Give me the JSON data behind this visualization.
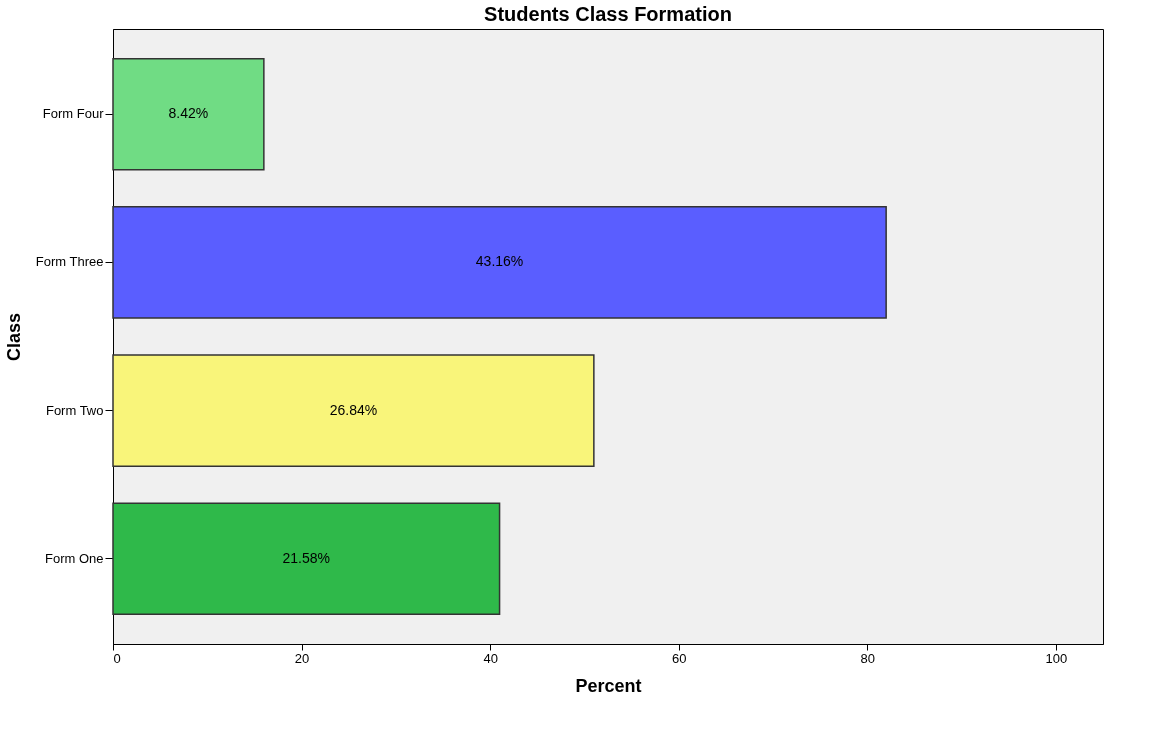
{
  "chart_data": {
    "type": "bar",
    "orientation": "horizontal",
    "title": "Students Class Formation",
    "xlabel": "Percent",
    "ylabel": "Class",
    "categories": [
      "Form Four",
      "Form Three",
      "Form Two",
      "Form One"
    ],
    "values": [
      16,
      82,
      51,
      41
    ],
    "annotations": [
      "8.42%",
      "43.16%",
      "26.84%",
      "21.58%"
    ],
    "colors": [
      "#70dc84",
      "#5a5eff",
      "#f9f57a",
      "#2fb94a"
    ],
    "xlim": [
      0,
      105
    ],
    "xticks": [
      0,
      20,
      40,
      60,
      80,
      100
    ],
    "grid": false,
    "legend": false
  }
}
